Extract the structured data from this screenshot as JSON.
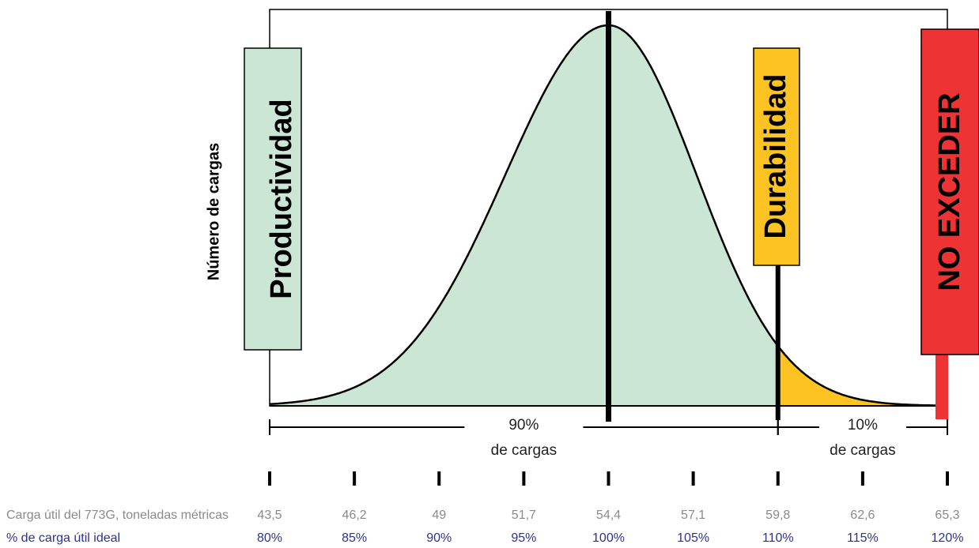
{
  "chart_data": {
    "type": "area",
    "ylabel": "Número de cargas",
    "ideal_x": 100,
    "durability_x": 110,
    "max_x": 120,
    "x_percent": [
      80,
      85,
      90,
      95,
      100,
      105,
      110,
      115,
      120
    ],
    "x_percent_labels": [
      "80%",
      "85%",
      "90%",
      "95%",
      "100%",
      "105%",
      "110%",
      "115%",
      "120%"
    ],
    "payload_tonnes": [
      "43,5",
      "46,2",
      "49",
      "51,7",
      "54,4",
      "57,1",
      "59,8",
      "62,6",
      "65,3"
    ],
    "row_labels": {
      "payload": "Carga útil del 773G, toneladas métricas",
      "percent": "% de carga útil ideal"
    },
    "regions": [
      {
        "label": "Productividad",
        "color": "#cce6d5"
      },
      {
        "label": "Durabilidad",
        "color": "#fcc323"
      },
      {
        "label": "NO EXCEDER",
        "color": "#ee3334"
      }
    ],
    "bands": [
      {
        "from": 80,
        "to": 110,
        "pct": "90%",
        "text": "de cargas"
      },
      {
        "from": 110,
        "to": 120,
        "pct": "10%",
        "text": "de cargas"
      }
    ]
  }
}
